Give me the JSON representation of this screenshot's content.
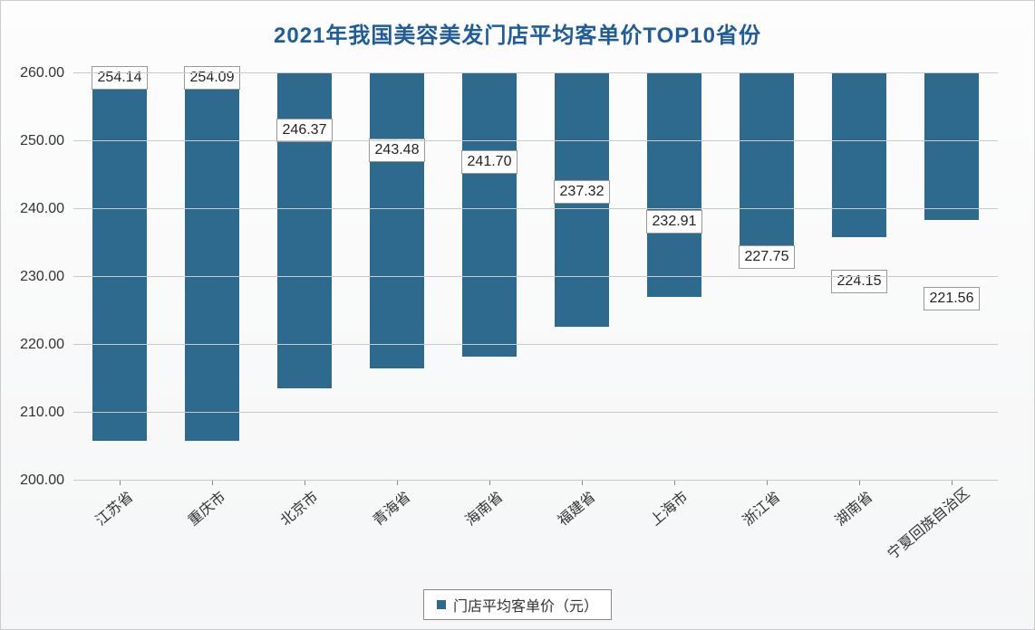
{
  "chart": {
    "type": "bar",
    "title": "2021年我国美容美发门店平均客单价TOP10省份",
    "title_fontsize": 24,
    "title_color": "#1f5c99",
    "categories": [
      "江苏省",
      "重庆市",
      "北京市",
      "青海省",
      "海南省",
      "福建省",
      "上海市",
      "浙江省",
      "湖南省",
      "宁夏回族自治区"
    ],
    "values": [
      254.14,
      254.09,
      246.37,
      243.48,
      241.7,
      237.32,
      232.91,
      227.75,
      224.15,
      221.56
    ],
    "value_labels": [
      "254.14",
      "254.09",
      "246.37",
      "243.48",
      "241.70",
      "237.32",
      "232.91",
      "227.75",
      "224.15",
      "221.56"
    ],
    "bar_color": "#2e6a8e",
    "ylim": [
      200,
      260
    ],
    "ytick_step": 10,
    "ytick_labels": [
      "200.00",
      "210.00",
      "220.00",
      "230.00",
      "240.00",
      "250.00",
      "260.00"
    ],
    "grid_color": "#c9c9c9",
    "baseline_color": "#888888",
    "background_gradient": [
      "#fdfdfd",
      "#f5f6f7"
    ],
    "data_label_fontsize": 16,
    "data_label_border": "#999999",
    "data_label_bg": "#ffffff",
    "axis_label_fontsize": 16,
    "x_label_rotation_deg": -40,
    "bar_width_ratio": 0.58,
    "legend": {
      "label": "门店平均客单价（元）",
      "swatch_color": "#2e6a8e",
      "border_color": "#888888",
      "fontsize": 16,
      "position": "bottom-center"
    }
  }
}
